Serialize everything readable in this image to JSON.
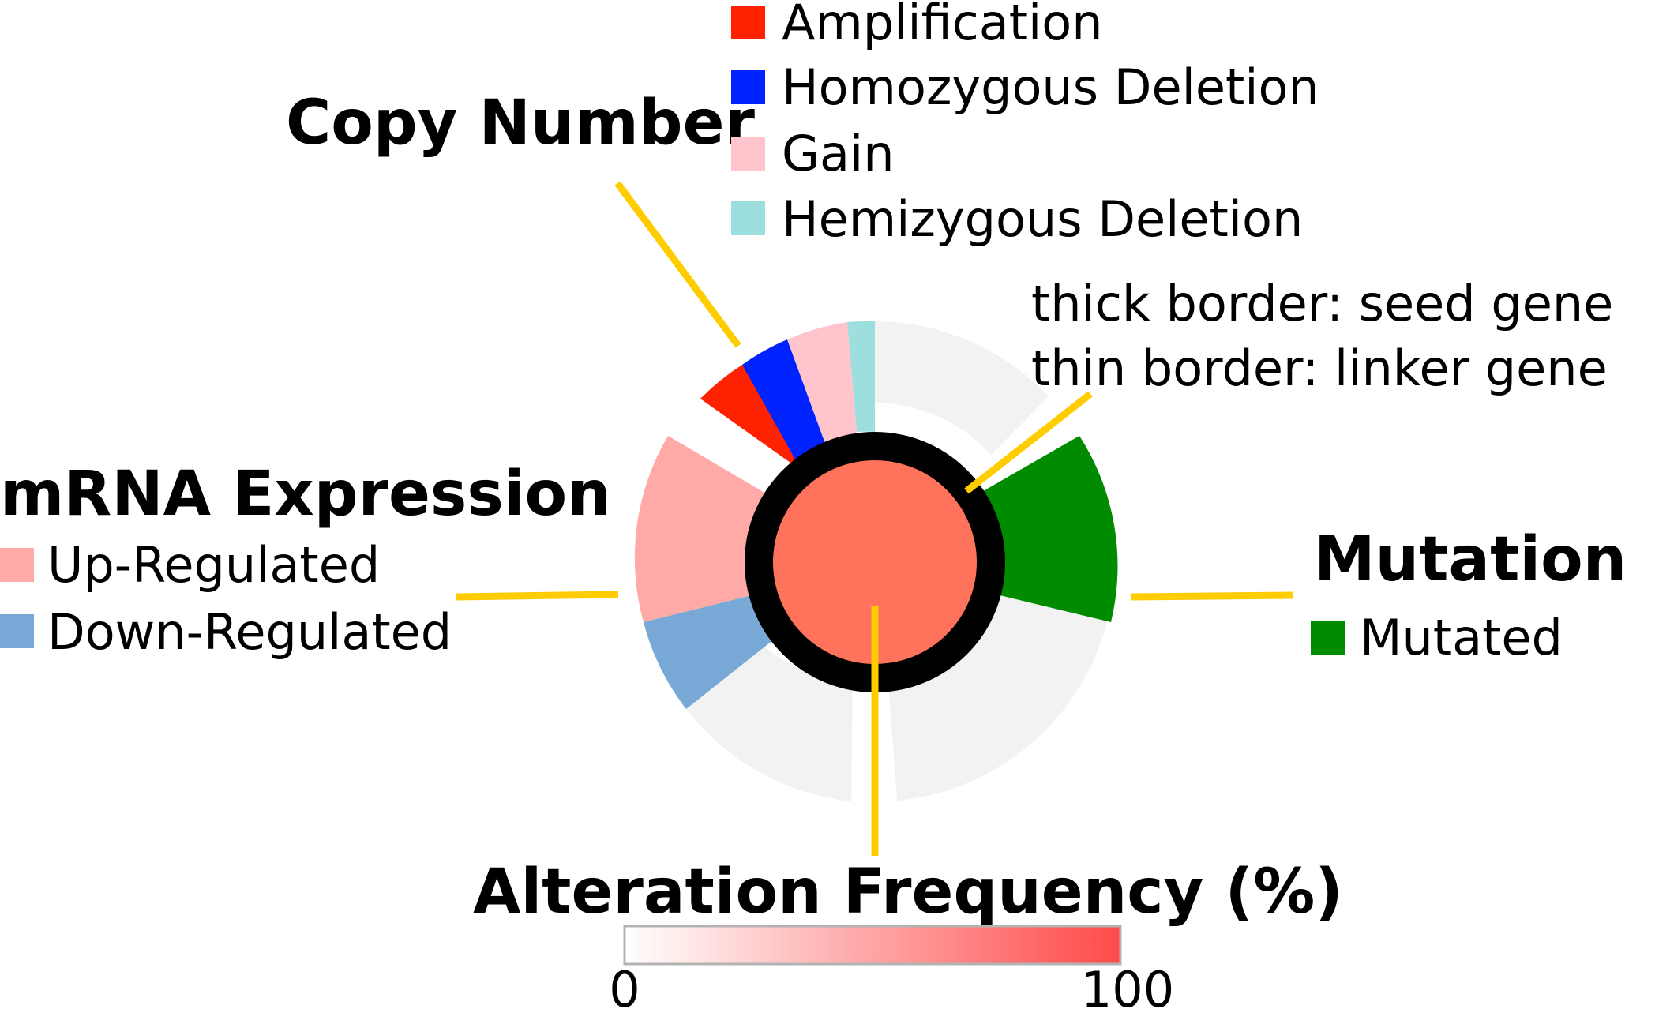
{
  "copy_number": {
    "title": "Copy Number",
    "items": [
      {
        "label": "Amplification",
        "color": "#ff2200"
      },
      {
        "label": "Homozygous Deletion",
        "color": "#0022ff"
      },
      {
        "label": "Gain",
        "color": "#ffc4cc"
      },
      {
        "label": "Hemizygous Deletion",
        "color": "#9ddede"
      }
    ]
  },
  "mrna": {
    "title": "mRNA Expression",
    "items": [
      {
        "label": "Up-Regulated",
        "color": "#ffaaa6"
      },
      {
        "label": "Down-Regulated",
        "color": "#78a9d6"
      }
    ]
  },
  "mutation": {
    "title": "Mutation",
    "items": [
      {
        "label": "Mutated",
        "color": "#008b00"
      }
    ]
  },
  "border_note": {
    "line1": "thick border: seed gene",
    "line2": "thin border: linker gene"
  },
  "frequency": {
    "title": "Alteration Frequency (%)",
    "min_label": "0",
    "max_label": "100",
    "gradient_start": "#ffffff",
    "gradient_end": "#ff4a4a"
  },
  "colors": {
    "pointer": "#ffcc00",
    "background_slice": "#f2f2f2",
    "center_fill": "#ff735c",
    "seed_border": "#000000"
  }
}
